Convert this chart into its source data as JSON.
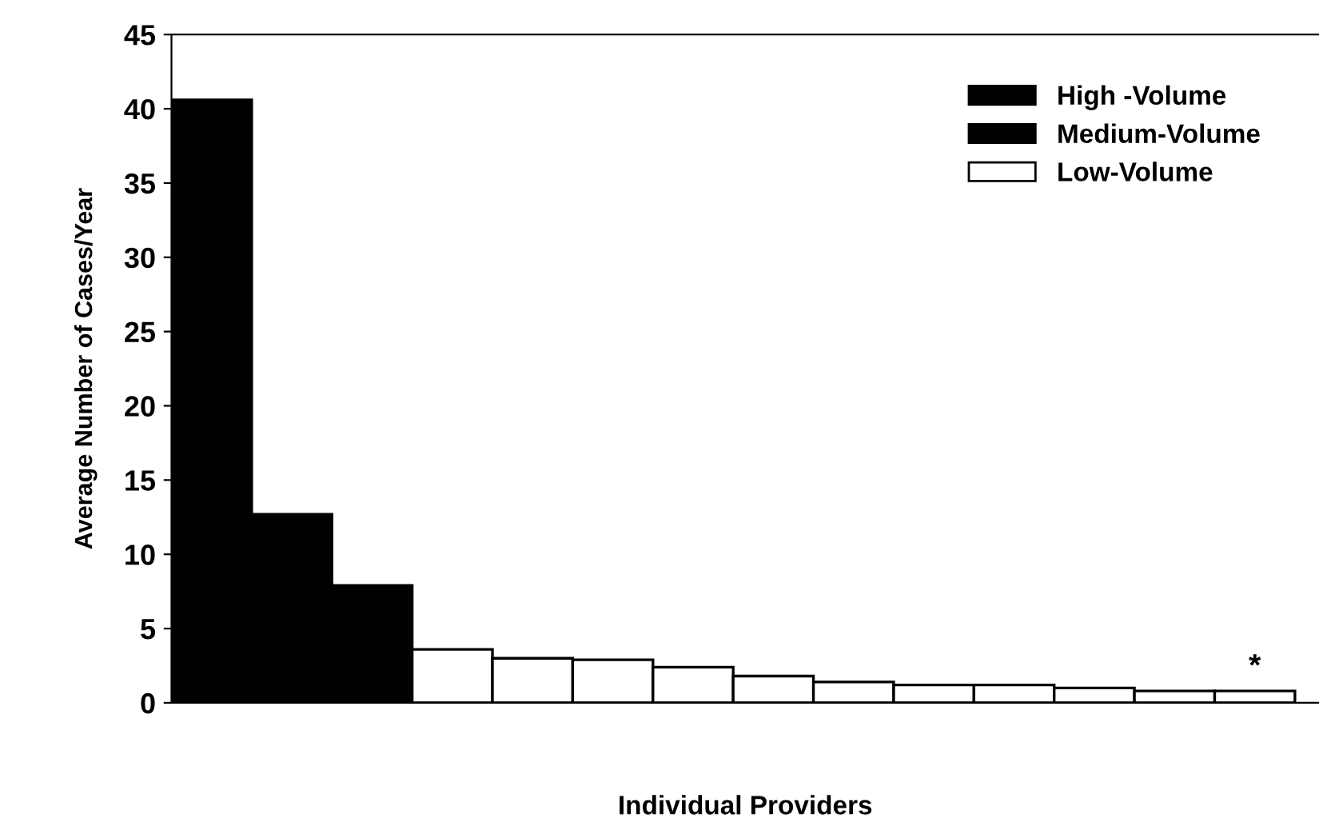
{
  "chart_data": {
    "type": "bar",
    "xlabel": "Individual Providers",
    "ylabel": "Average Number of Cases/Year",
    "categories": [
      null,
      null,
      null,
      null,
      null,
      null,
      null,
      null,
      null,
      null,
      null,
      null,
      null,
      null
    ],
    "series": [
      {
        "name": "High -Volume",
        "color": "#000000",
        "values": [
          40.6,
          null,
          null,
          null,
          null,
          null,
          null,
          null,
          null,
          null,
          null,
          null,
          null,
          null
        ]
      },
      {
        "name": "Medium-Volume",
        "color": "#000000",
        "values": [
          null,
          12.7,
          7.9,
          null,
          null,
          null,
          null,
          null,
          null,
          null,
          null,
          null,
          null,
          null
        ]
      },
      {
        "name": "Low-Volume",
        "color": "#ffffff",
        "values": [
          null,
          null,
          null,
          3.6,
          3.0,
          2.9,
          2.4,
          1.8,
          1.4,
          1.2,
          1.2,
          1.0,
          0.8,
          0.8
        ]
      }
    ],
    "ylim": [
      0,
      45
    ],
    "yticks": [
      0,
      5,
      10,
      15,
      20,
      25,
      30,
      35,
      40,
      45
    ],
    "annotations": [
      "*"
    ],
    "legend": "top right",
    "grid": false
  }
}
